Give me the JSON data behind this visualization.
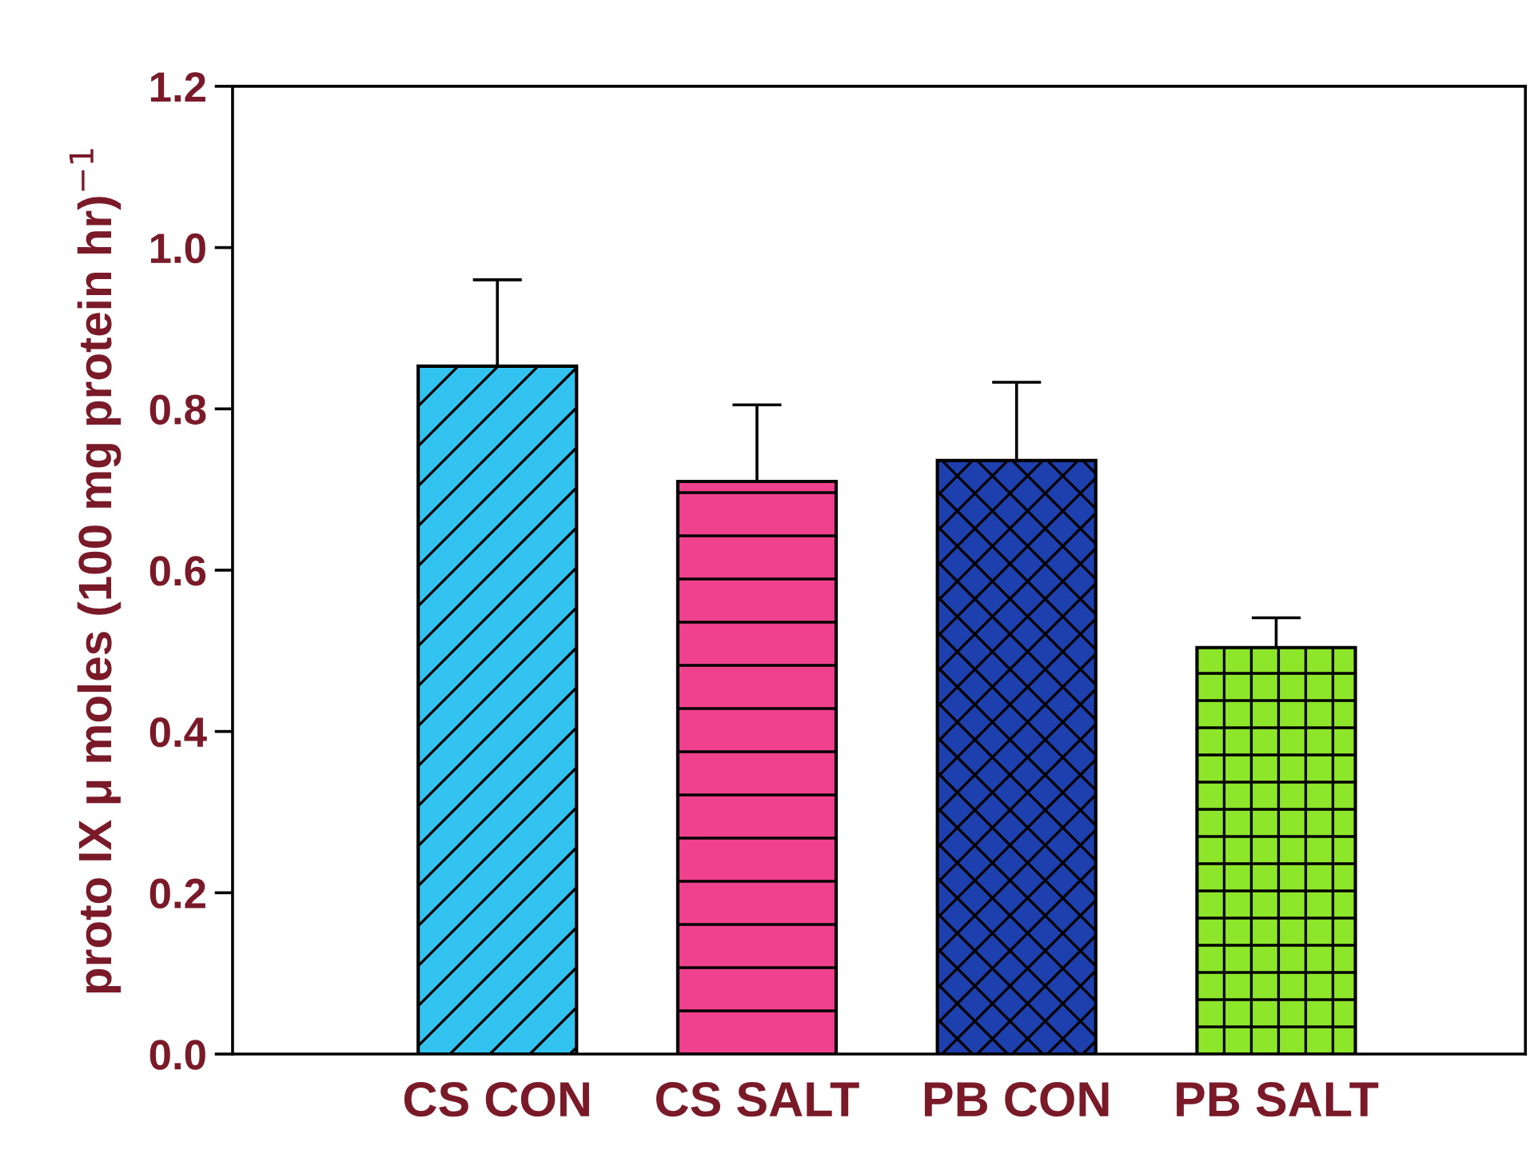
{
  "chart_data": {
    "type": "bar",
    "ylabel": "proto IX μ moles (100 mg protein hr)$^{−1}$",
    "categories": [
      "CS CON",
      "CS SALT",
      "PB CON",
      "PB SALT"
    ],
    "values": [
      0.853,
      0.71,
      0.736,
      0.504
    ],
    "colors": [
      "#33c3f0",
      "#f0418e",
      "#1e3fae",
      "#8ee62a"
    ],
    "errors": [
      [
        0.853,
        0.96
      ],
      [
        0.71,
        0.805
      ],
      [
        0.736,
        0.833
      ],
      [
        0.504,
        0.541
      ]
    ],
    "ylim": [
      0,
      1.2
    ],
    "yticks": [
      {
        "value": 0,
        "label": "0.0"
      },
      {
        "value": 0.2,
        "label": "0.2"
      },
      {
        "value": 0.4,
        "label": "0.4"
      },
      {
        "value": 0.6,
        "label": "0.6"
      },
      {
        "value": 0.8,
        "label": "0.8"
      },
      {
        "value": 1.0,
        "label": "1.0"
      },
      {
        "value": 1.2,
        "label": "1.2"
      }
    ],
    "grid": false,
    "legend": false
  }
}
